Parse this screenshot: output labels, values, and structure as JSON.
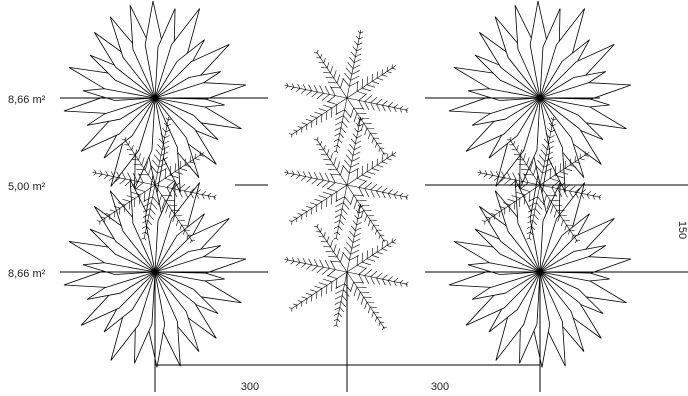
{
  "labels": [
    "8,66 m²",
    "5,00 m²",
    "8,66 m²"
  ],
  "dimensions": [
    "300",
    "300",
    "150"
  ]
}
